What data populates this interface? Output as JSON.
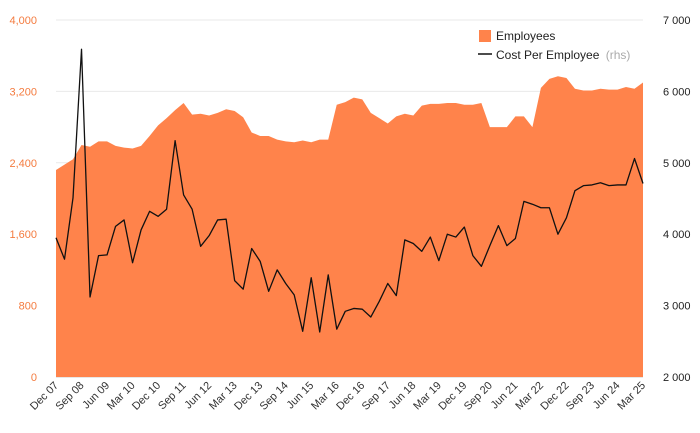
{
  "chart_data": {
    "type": "area",
    "colors": {
      "area": "#ff834b",
      "line": "#111111",
      "left_axis": "#f47b3f",
      "right_axis": "#222222"
    },
    "legend": {
      "placement": "top-right",
      "items": [
        {
          "label": "Employees",
          "symbol": "square"
        },
        {
          "label": "Cost Per Employee",
          "note": "(rhs)",
          "symbol": "line"
        }
      ]
    },
    "y_left": {
      "ylim": [
        0,
        4000
      ],
      "ticks": [
        "0",
        "800",
        "1,600",
        "2,400",
        "3,200",
        "4,000"
      ],
      "tick_values": [
        0,
        800,
        1600,
        2400,
        3200,
        4000
      ]
    },
    "y_right": {
      "ylim": [
        2000,
        7000
      ],
      "ticks": [
        "2 000",
        "3 000",
        "4 000",
        "5 000",
        "6 000",
        "7 000"
      ],
      "tick_values": [
        2000,
        3000,
        4000,
        5000,
        6000,
        7000
      ]
    },
    "x_ticks": [
      "Dec 07",
      "Sep 08",
      "Jun 09",
      "Mar 10",
      "Dec 10",
      "Sep 11",
      "Jun 12",
      "Mar 13",
      "Dec 13",
      "Sep 14",
      "Jun 15",
      "Mar 16",
      "Dec 16",
      "Sep 17",
      "Jun 18",
      "Mar 19",
      "Dec 19",
      "Sep 20",
      "Jun 21",
      "Mar 22",
      "Dec 22",
      "Sep 23",
      "Jun 24",
      "Mar 25"
    ],
    "series": [
      {
        "name": "Employees",
        "axis": "left",
        "type": "area",
        "values": [
          2320,
          2380,
          2440,
          2600,
          2580,
          2640,
          2640,
          2590,
          2570,
          2560,
          2590,
          2700,
          2820,
          2900,
          2990,
          3070,
          2940,
          2950,
          2930,
          2960,
          3000,
          2980,
          2910,
          2740,
          2700,
          2700,
          2660,
          2640,
          2630,
          2650,
          2630,
          2660,
          2660,
          3050,
          3080,
          3130,
          3110,
          2960,
          2900,
          2840,
          2920,
          2950,
          2930,
          3040,
          3060,
          3060,
          3070,
          3070,
          3050,
          3050,
          3070,
          2800,
          2800,
          2800,
          2920,
          2920,
          2800,
          3240,
          3340,
          3370,
          3350,
          3230,
          3210,
          3210,
          3230,
          3220,
          3220,
          3250,
          3230,
          3300
        ]
      },
      {
        "name": "Cost Per Employee",
        "axis": "right",
        "type": "line",
        "values": [
          3950,
          3650,
          4510,
          6590,
          3120,
          3700,
          3710,
          4110,
          4200,
          3600,
          4060,
          4320,
          4250,
          4350,
          5310,
          4550,
          4350,
          3830,
          3980,
          4200,
          4210,
          3350,
          3230,
          3800,
          3620,
          3200,
          3500,
          3310,
          3150,
          2640,
          3390,
          2630,
          3430,
          2670,
          2920,
          2960,
          2950,
          2840,
          3060,
          3310,
          3140,
          3920,
          3870,
          3760,
          3960,
          3630,
          4000,
          3960,
          4100,
          3700,
          3550,
          3840,
          4120,
          3840,
          3940,
          4460,
          4420,
          4370,
          4370,
          4000,
          4230,
          4610,
          4680,
          4690,
          4720,
          4680,
          4690,
          4690,
          5060,
          4710
        ]
      }
    ]
  }
}
